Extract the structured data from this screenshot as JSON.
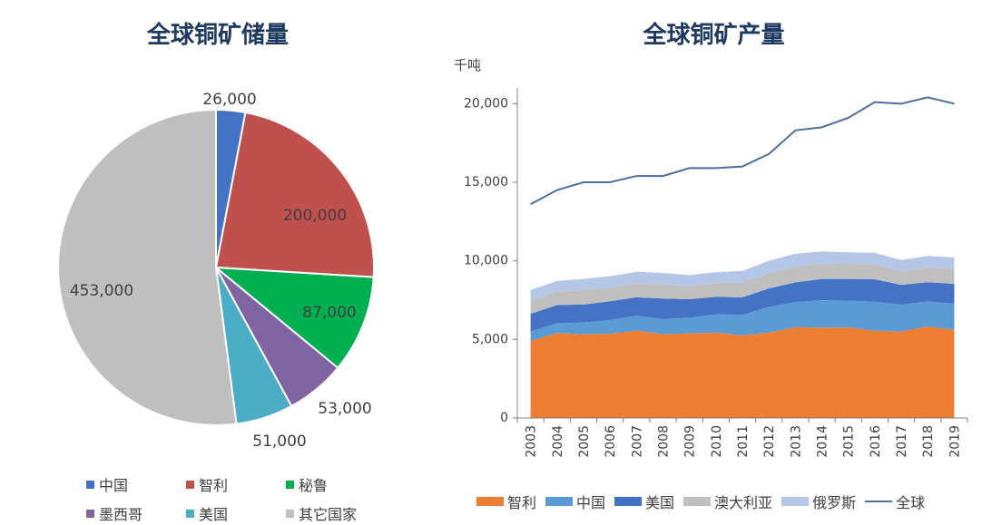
{
  "charts": {
    "pie": {
      "title": "全球铜矿储量"
    },
    "area": {
      "title": "全球铜矿产量",
      "unit": "千吨"
    }
  },
  "chart_data": [
    {
      "type": "pie",
      "title": "全球铜矿储量",
      "slices": [
        {
          "name": "中国",
          "value": 26000,
          "label": "26,000",
          "color": "#4472C4"
        },
        {
          "name": "智利",
          "value": 200000,
          "label": "200,000",
          "color": "#C0504D"
        },
        {
          "name": "秘鲁",
          "value": 87000,
          "label": "87,000",
          "color": "#00B050"
        },
        {
          "name": "墨西哥",
          "value": 53000,
          "label": "53,000",
          "color": "#8064A2"
        },
        {
          "name": "美国",
          "value": 51000,
          "label": "51,000",
          "color": "#4BACC6"
        },
        {
          "name": "其它国家",
          "value": 453000,
          "label": "453,000",
          "color": "#BFBFBF"
        }
      ],
      "legend_placement": "bottom"
    },
    {
      "type": "area",
      "title": "全球铜矿产量",
      "ylabel": "千吨",
      "ylim": [
        0,
        21000
      ],
      "yticks": [
        0,
        5000,
        10000,
        15000,
        20000
      ],
      "ytick_labels": [
        "0",
        "5,000",
        "10,000",
        "15,000",
        "20,000"
      ],
      "x": [
        "2003",
        "2004",
        "2005",
        "2006",
        "2007",
        "2008",
        "2009",
        "2010",
        "2011",
        "2012",
        "2013",
        "2014",
        "2015",
        "2016",
        "2017",
        "2018",
        "2019"
      ],
      "stacked_series": [
        {
          "name": "智利",
          "color": "#ED7D31",
          "values": [
            4900,
            5410,
            5320,
            5360,
            5560,
            5330,
            5390,
            5420,
            5260,
            5430,
            5780,
            5750,
            5760,
            5550,
            5500,
            5830,
            5600
          ]
        },
        {
          "name": "中国",
          "color": "#5B9BD5",
          "values": [
            610,
            620,
            760,
            870,
            950,
            960,
            990,
            1180,
            1310,
            1640,
            1600,
            1740,
            1710,
            1850,
            1710,
            1590,
            1680
          ]
        },
        {
          "name": "美国",
          "color": "#4472C4",
          "values": [
            1120,
            1160,
            1140,
            1200,
            1170,
            1310,
            1180,
            1110,
            1110,
            1170,
            1250,
            1360,
            1380,
            1430,
            1260,
            1220,
            1260
          ]
        },
        {
          "name": "澳大利亚",
          "color": "#BFBFBF",
          "values": [
            830,
            850,
            930,
            860,
            870,
            890,
            850,
            870,
            960,
            960,
            1000,
            970,
            990,
            950,
            860,
            920,
            960
          ]
        },
        {
          "name": "俄罗斯",
          "color": "#B4C7E7",
          "values": [
            680,
            680,
            700,
            730,
            750,
            740,
            680,
            700,
            710,
            800,
            820,
            780,
            700,
            730,
            720,
            750,
            720
          ]
        }
      ],
      "line_series": {
        "name": "全球",
        "color": "#4A6FA5",
        "values": [
          13600,
          14500,
          15000,
          15000,
          15400,
          15400,
          15900,
          15900,
          16000,
          16800,
          18300,
          18500,
          19100,
          20100,
          20000,
          20400,
          20000
        ]
      },
      "legend_placement": "bottom",
      "grid": false
    }
  ]
}
